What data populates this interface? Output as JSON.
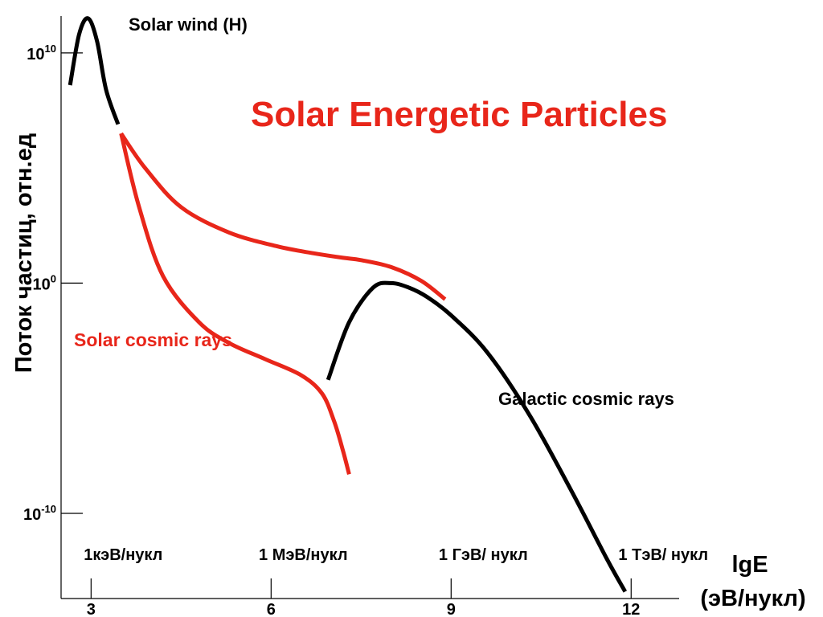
{
  "chart_data": {
    "type": "line",
    "title": "Solar Energetic Particles",
    "title_color": "#e8261a",
    "ylabel": "Поток частиц, отн.ед",
    "xlabel": [
      "lgE",
      "(эВ/нукл)"
    ],
    "x_scale": "log10",
    "y_scale": "log10",
    "xlim": [
      2.5,
      12.8
    ],
    "ylim": [
      -13.7,
      11.6
    ],
    "x_ticks": [
      {
        "value": 3,
        "label": "3"
      },
      {
        "value": 6,
        "label": "6"
      },
      {
        "value": 9,
        "label": "9"
      },
      {
        "value": 12,
        "label": "12"
      }
    ],
    "y_ticks": [
      {
        "value": 10,
        "base": "10",
        "exp": "10"
      },
      {
        "value": 0,
        "base": "10",
        "exp": "0"
      },
      {
        "value": -10,
        "base": "10",
        "exp": "-10"
      }
    ],
    "energy_labels": [
      {
        "value": 3,
        "label": "1кэВ/нукл"
      },
      {
        "value": 6,
        "label": "1 МэВ/нукл"
      },
      {
        "value": 9,
        "label": "1 ГэВ/ нукл"
      },
      {
        "value": 12,
        "label": "1 ТэВ/ нукл"
      }
    ],
    "series": [
      {
        "name": "Solar wind (H)",
        "color": "#000000",
        "x": [
          2.65,
          2.8,
          2.95,
          3.1,
          3.25,
          3.45
        ],
        "y": [
          8.6,
          10.8,
          11.5,
          10.5,
          8.4,
          6.9
        ]
      },
      {
        "name": "Solar cosmic rays",
        "color": "#e8261a",
        "x": [
          3.5,
          3.9,
          4.5,
          5.3,
          6.1,
          6.7,
          7.2,
          7.5,
          8.0,
          8.5,
          8.9
        ],
        "y": [
          6.5,
          5.0,
          3.3,
          2.2,
          1.6,
          1.3,
          1.1,
          1.0,
          0.7,
          0.1,
          -0.7
        ]
      },
      {
        "name": "",
        "color": "#e8261a",
        "x": [
          3.5,
          3.8,
          4.2,
          4.8,
          5.3,
          5.9,
          6.5,
          6.85,
          7.05,
          7.2,
          7.3
        ],
        "y": [
          6.5,
          3.3,
          0.3,
          -1.7,
          -2.6,
          -3.3,
          -4.0,
          -4.8,
          -6.0,
          -7.3,
          -8.3
        ]
      },
      {
        "name": "Galactic cosmic rays",
        "color": "#000000",
        "x": [
          6.95,
          7.3,
          7.7,
          8.0,
          8.3,
          8.6,
          9.0,
          9.6,
          10.3,
          11.0,
          11.6,
          11.9
        ],
        "y": [
          -4.2,
          -1.7,
          -0.2,
          0.0,
          -0.2,
          -0.6,
          -1.4,
          -3.0,
          -5.7,
          -9.0,
          -12.0,
          -13.4
        ]
      }
    ],
    "series_labels": [
      {
        "text": "Solar wind (H)",
        "color": "#000000"
      },
      {
        "text": "Solar cosmic rays",
        "color": "#e8261a"
      },
      {
        "text": "Galactic cosmic rays",
        "color": "#000000"
      }
    ],
    "grid": false,
    "legend": "none"
  }
}
